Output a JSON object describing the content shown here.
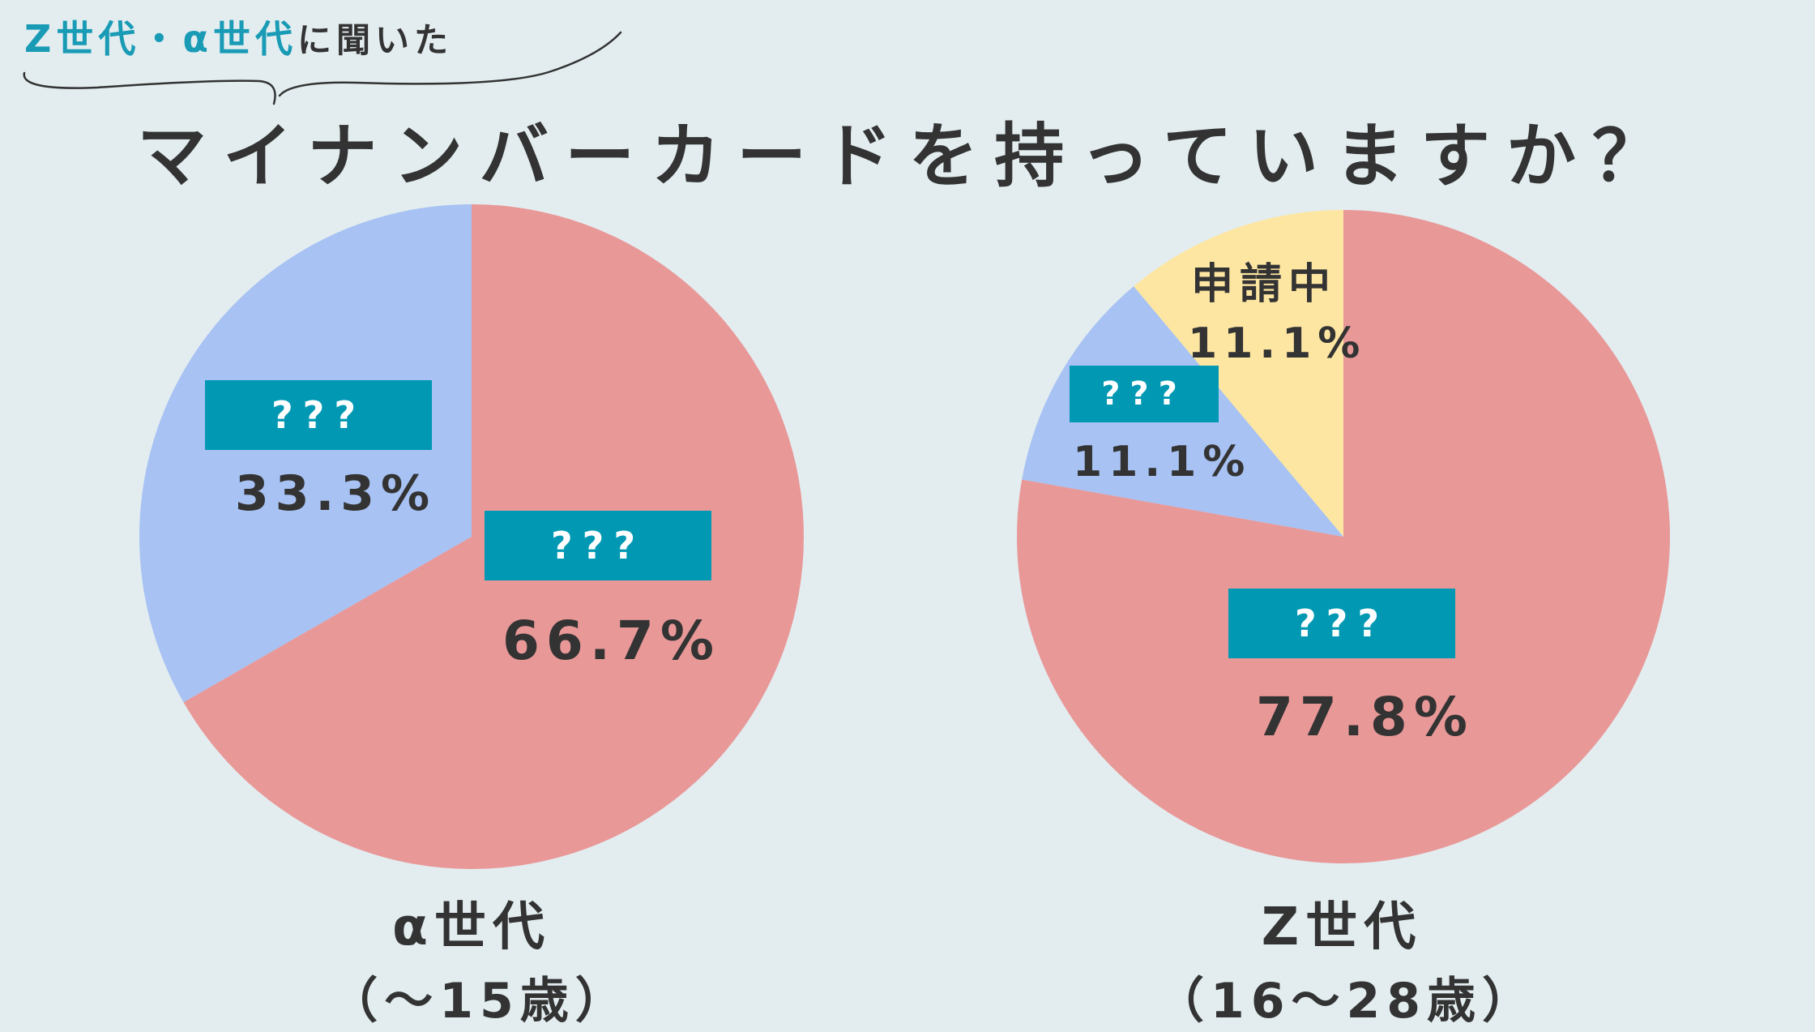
{
  "header": {
    "tag_accent": "Z世代・α世代",
    "tag_plain": "に聞いた",
    "title": "マイナンバーカードを持っていますか？"
  },
  "colors": {
    "background": "#e3edf0",
    "slice_main": "#e99898",
    "slice_other": "#a7c2f3",
    "slice_applying": "#fde6a2",
    "label_box": "#0098b3",
    "accent_text": "#1a9bb5"
  },
  "chart_data": [
    {
      "type": "pie",
      "title": "",
      "caption": "α世代",
      "subcaption": "（〜15歳）",
      "slices": [
        {
          "label": "???",
          "value": 66.7,
          "display": "66.7%",
          "color": "#e99898"
        },
        {
          "label": "???",
          "value": 33.3,
          "display": "33.3%",
          "color": "#a7c2f3"
        }
      ]
    },
    {
      "type": "pie",
      "title": "",
      "caption": "Z世代",
      "subcaption": "（16〜28歳）",
      "slices": [
        {
          "label": "???",
          "value": 77.8,
          "display": "77.8%",
          "color": "#e99898"
        },
        {
          "label": "???",
          "value": 11.1,
          "display": "11.1%",
          "color": "#a7c2f3"
        },
        {
          "label": "申請中",
          "value": 11.1,
          "display": "11.1%",
          "color": "#fde6a2"
        }
      ]
    }
  ]
}
